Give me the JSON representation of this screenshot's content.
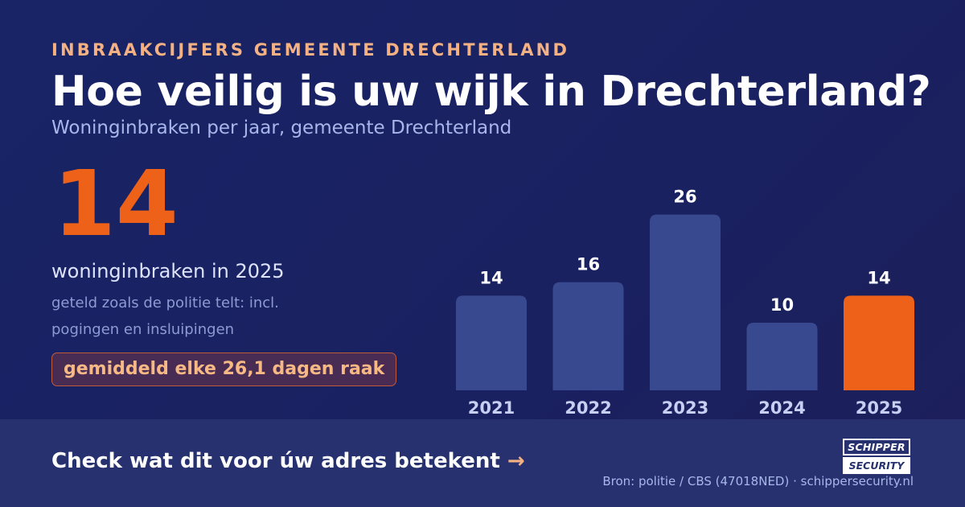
{
  "header": {
    "eyebrow": "INBRAAKCIJFERS GEMEENTE DRECHTERLAND",
    "title": "Hoe veilig is uw wijk in Drechterland?",
    "subtitle": "Woninginbraken per jaar, gemeente Drechterland"
  },
  "stat": {
    "value": "14",
    "label": "woninginbraken in 2025",
    "note": "geteld zoals de politie telt: incl. pogingen en insluipingen",
    "badge": "gemiddeld elke 26,1 dagen raak"
  },
  "chart_data": {
    "type": "bar",
    "title": "",
    "xlabel": "",
    "ylabel": "",
    "categories": [
      "2021",
      "2022",
      "2023",
      "2024",
      "2025"
    ],
    "values": [
      14,
      16,
      26,
      10,
      14
    ],
    "highlight_index": 4,
    "grid": false,
    "colors": {
      "bar": "#39498f",
      "highlight": "#ee6118",
      "value_label": "#ffffff",
      "tick_label": "#c7cff3"
    }
  },
  "footer": {
    "cta": "Check wat dit voor úw adres betekent",
    "cta_arrow": "→",
    "logo_line1": "SCHIPPER",
    "logo_line2": "SECURITY",
    "source": "Bron: politie / CBS (47018NED) · schippersecurity.nl"
  }
}
